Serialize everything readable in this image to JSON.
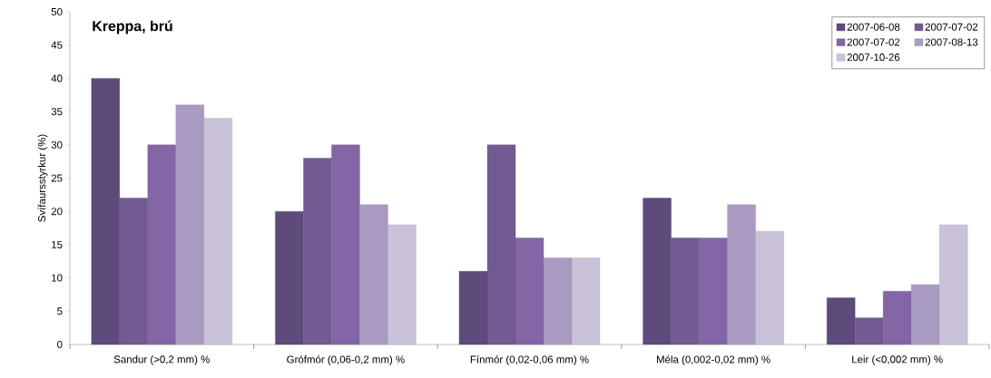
{
  "chart_data": {
    "type": "bar",
    "title": "Kreppa, brú",
    "ylabel": "Svífaursstyrkur (%)",
    "categories": [
      "Sandur (>0,2 mm) %",
      "Grófmór (0,06-0,2 mm) %",
      "Fínmór (0,02-0,06 mm) %",
      "Méla (0,002-0,02 mm) %",
      "Leir (<0,002 mm) %"
    ],
    "series": [
      {
        "name": "2007-06-08",
        "color": "#5f4a7c",
        "values": [
          40,
          20,
          11,
          22,
          7
        ]
      },
      {
        "name": "2007-07-02",
        "color": "#725b92",
        "values": [
          22,
          28,
          30,
          16,
          4
        ]
      },
      {
        "name": "2007-07-02",
        "color": "#8466a6",
        "values": [
          30,
          30,
          16,
          16,
          8
        ]
      },
      {
        "name": "2007-08-13",
        "color": "#a99bc1",
        "values": [
          36,
          21,
          13,
          21,
          9
        ]
      },
      {
        "name": "2007-10-26",
        "color": "#c9c2d9",
        "values": [
          34,
          18,
          13,
          17,
          18
        ]
      }
    ],
    "ylim": [
      0,
      50
    ],
    "yticks": [
      0,
      5,
      10,
      15,
      20,
      25,
      30,
      35,
      40,
      45,
      50
    ],
    "grid": false,
    "legend": "top right"
  }
}
